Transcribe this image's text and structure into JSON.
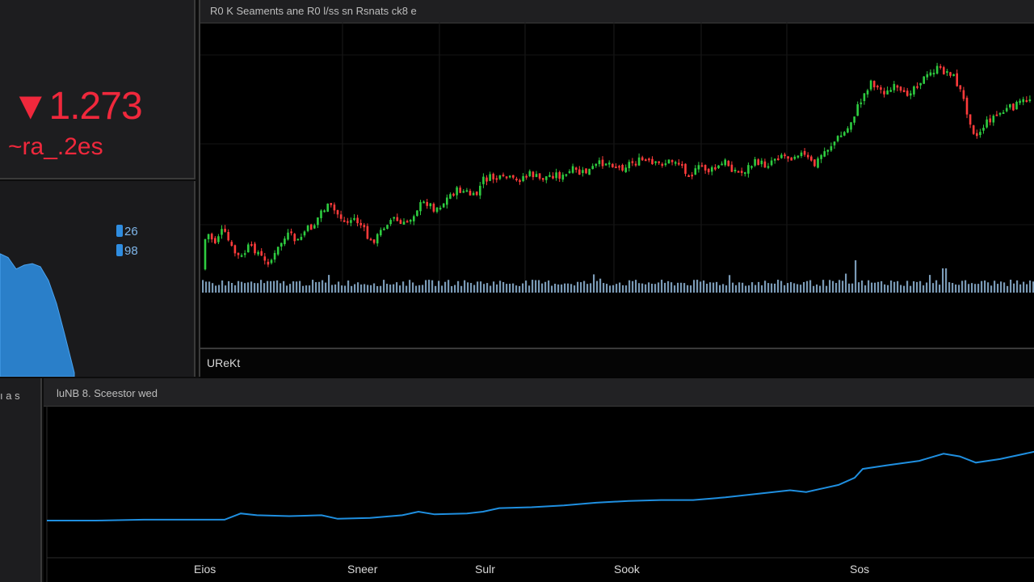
{
  "price_panel": {
    "arrow": "▼",
    "price": "1.273",
    "change": "~ra_.2es"
  },
  "mini_panel": {
    "legend": [
      "26",
      "98"
    ]
  },
  "main_chart_panel": {
    "title": "R0 K Seaments ane R0 l/ss sn Rsnats ck8 e",
    "footer_label": "UReKt"
  },
  "bottom_left": {
    "label": "ı a s"
  },
  "bottom_panel": {
    "title": "luNB 8. Sceestor wed",
    "x_labels": [
      "Eios",
      "Sneer",
      "Sulr",
      "Sook",
      "Sos"
    ]
  },
  "colors": {
    "up": "#2ecc40",
    "down": "#ff3b3b",
    "line": "#1f8fe0",
    "volume": "#8fb5d6",
    "price_red": "#f0283c"
  },
  "chart_data": [
    {
      "type": "candlestick",
      "title": "R0 K Seaments ane R0 l/ss sn Rsnats ck8 e",
      "close_trend": [
        [
          0,
          305
        ],
        [
          10,
          290
        ],
        [
          18,
          300
        ],
        [
          25,
          285
        ],
        [
          32,
          292
        ],
        [
          40,
          310
        ],
        [
          50,
          320
        ],
        [
          60,
          305
        ],
        [
          70,
          310
        ],
        [
          80,
          325
        ],
        [
          90,
          320
        ],
        [
          100,
          300
        ],
        [
          110,
          290
        ],
        [
          120,
          300
        ],
        [
          130,
          285
        ],
        [
          140,
          280
        ],
        [
          150,
          260
        ],
        [
          160,
          255
        ],
        [
          170,
          265
        ],
        [
          180,
          275
        ],
        [
          190,
          270
        ],
        [
          200,
          280
        ],
        [
          210,
          300
        ],
        [
          220,
          292
        ],
        [
          230,
          275
        ],
        [
          240,
          270
        ],
        [
          250,
          280
        ],
        [
          260,
          270
        ],
        [
          270,
          255
        ],
        [
          280,
          250
        ],
        [
          290,
          258
        ],
        [
          300,
          252
        ],
        [
          310,
          240
        ],
        [
          320,
          235
        ],
        [
          330,
          238
        ],
        [
          340,
          245
        ],
        [
          350,
          222
        ],
        [
          360,
          220
        ],
        [
          370,
          222
        ],
        [
          380,
          220
        ],
        [
          390,
          225
        ],
        [
          400,
          218
        ],
        [
          410,
          215
        ],
        [
          420,
          222
        ],
        [
          430,
          218
        ],
        [
          440,
          215
        ],
        [
          450,
          220
        ],
        [
          460,
          210
        ],
        [
          470,
          215
        ],
        [
          480,
          212
        ],
        [
          490,
          205
        ],
        [
          500,
          200
        ],
        [
          510,
          202
        ],
        [
          520,
          208
        ],
        [
          530,
          202
        ],
        [
          540,
          200
        ],
        [
          550,
          198
        ],
        [
          560,
          205
        ],
        [
          570,
          202
        ],
        [
          580,
          200
        ],
        [
          590,
          198
        ],
        [
          600,
          210
        ],
        [
          610,
          215
        ],
        [
          620,
          205
        ],
        [
          630,
          212
        ],
        [
          640,
          208
        ],
        [
          650,
          200
        ],
        [
          660,
          210
        ],
        [
          670,
          214
        ],
        [
          680,
          205
        ],
        [
          690,
          200
        ],
        [
          700,
          205
        ],
        [
          710,
          195
        ],
        [
          720,
          190
        ],
        [
          730,
          195
        ],
        [
          740,
          188
        ],
        [
          750,
          195
        ],
        [
          760,
          205
        ],
        [
          770,
          190
        ],
        [
          780,
          180
        ],
        [
          790,
          170
        ],
        [
          800,
          162
        ],
        [
          810,
          140
        ],
        [
          820,
          120
        ],
        [
          830,
          100
        ],
        [
          840,
          110
        ],
        [
          850,
          115
        ],
        [
          860,
          108
        ],
        [
          870,
          120
        ],
        [
          880,
          110
        ],
        [
          890,
          100
        ],
        [
          900,
          95
        ],
        [
          910,
          85
        ],
        [
          920,
          88
        ],
        [
          930,
          90
        ],
        [
          940,
          110
        ],
        [
          950,
          140
        ],
        [
          960,
          170
        ],
        [
          970,
          155
        ],
        [
          980,
          145
        ],
        [
          990,
          140
        ],
        [
          1000,
          135
        ],
        [
          1010,
          130
        ],
        [
          1020,
          125
        ],
        [
          1030,
          120
        ]
      ],
      "volume_spikes": [
        [
          810,
          40
        ],
        [
          920,
          30
        ]
      ]
    },
    {
      "type": "area",
      "trend": [
        [
          0,
          5
        ],
        [
          10,
          10
        ],
        [
          20,
          25
        ],
        [
          30,
          20
        ],
        [
          40,
          18
        ],
        [
          50,
          22
        ],
        [
          60,
          40
        ],
        [
          70,
          70
        ],
        [
          80,
          110
        ],
        [
          92,
          160
        ]
      ]
    },
    {
      "type": "line",
      "title": "luNB 8. Sceestor wed",
      "x_labels": [
        "Eios",
        "Sneer",
        "Sulr",
        "Sook",
        "Sos"
      ],
      "trend": [
        [
          0,
          0.0
        ],
        [
          60,
          0.0
        ],
        [
          120,
          0.01
        ],
        [
          180,
          0.01
        ],
        [
          220,
          0.01
        ],
        [
          240,
          0.08
        ],
        [
          260,
          0.06
        ],
        [
          300,
          0.05
        ],
        [
          340,
          0.06
        ],
        [
          360,
          0.02
        ],
        [
          400,
          0.03
        ],
        [
          440,
          0.06
        ],
        [
          460,
          0.1
        ],
        [
          480,
          0.07
        ],
        [
          520,
          0.08
        ],
        [
          540,
          0.1
        ],
        [
          560,
          0.14
        ],
        [
          600,
          0.15
        ],
        [
          640,
          0.17
        ],
        [
          680,
          0.2
        ],
        [
          720,
          0.22
        ],
        [
          760,
          0.23
        ],
        [
          800,
          0.23
        ],
        [
          840,
          0.26
        ],
        [
          880,
          0.3
        ],
        [
          920,
          0.34
        ],
        [
          940,
          0.32
        ],
        [
          960,
          0.36
        ],
        [
          980,
          0.4
        ],
        [
          1000,
          0.48
        ],
        [
          1010,
          0.58
        ],
        [
          1040,
          0.62
        ],
        [
          1080,
          0.67
        ],
        [
          1110,
          0.75
        ],
        [
          1130,
          0.72
        ],
        [
          1150,
          0.65
        ],
        [
          1180,
          0.69
        ],
        [
          1226,
          0.78
        ]
      ]
    }
  ]
}
